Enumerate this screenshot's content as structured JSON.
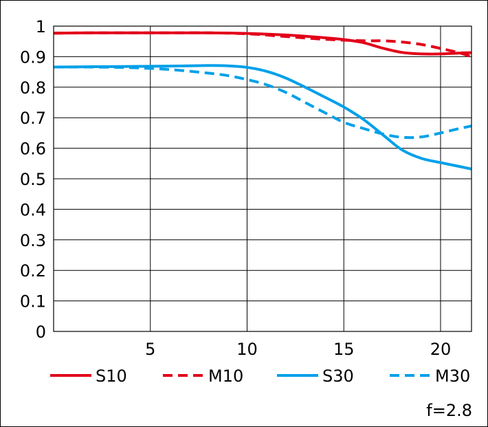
{
  "chart_data": {
    "type": "line",
    "title": "",
    "xlabel": "",
    "ylabel": "",
    "xlim": [
      0,
      21.6
    ],
    "ylim": [
      0,
      1
    ],
    "xticks": [
      5,
      10,
      15,
      20
    ],
    "xtick_labels": [
      "5",
      "10",
      "15",
      "20"
    ],
    "yticks": [
      0,
      0.1,
      0.2,
      0.3,
      0.4,
      0.5,
      0.6,
      0.7,
      0.8,
      0.9,
      1
    ],
    "ytick_labels": [
      "0",
      "0.1",
      "0.2",
      "0.3",
      "0.4",
      "0.5",
      "0.6",
      "0.7",
      "0.8",
      "0.9",
      "1"
    ],
    "grid": true,
    "legend_position": "bottom",
    "annotation": "f=2.8",
    "series": [
      {
        "name": "S10",
        "color": "#e2001a",
        "dash": "solid",
        "x": [
          0,
          2,
          4,
          6,
          8,
          10,
          12,
          14,
          15,
          16,
          17,
          18,
          19,
          20,
          21,
          21.6
        ],
        "y": [
          0.977,
          0.978,
          0.978,
          0.978,
          0.978,
          0.976,
          0.971,
          0.962,
          0.956,
          0.946,
          0.928,
          0.914,
          0.909,
          0.909,
          0.912,
          0.913
        ]
      },
      {
        "name": "M10",
        "color": "#e2001a",
        "dash": "dashed",
        "x": [
          0,
          2,
          4,
          6,
          8,
          10,
          12,
          14,
          16,
          17,
          18,
          19,
          20,
          21,
          21.6
        ],
        "y": [
          0.977,
          0.978,
          0.978,
          0.978,
          0.978,
          0.975,
          0.966,
          0.957,
          0.952,
          0.952,
          0.948,
          0.94,
          0.927,
          0.912,
          0.9
        ]
      },
      {
        "name": "S30",
        "color": "#00a0e9",
        "dash": "solid",
        "x": [
          0,
          2,
          4,
          6,
          8,
          9,
          10,
          11,
          12,
          13,
          14,
          15,
          16,
          17,
          18,
          19,
          20,
          21,
          21.6
        ],
        "y": [
          0.866,
          0.867,
          0.868,
          0.869,
          0.871,
          0.87,
          0.865,
          0.852,
          0.83,
          0.8,
          0.768,
          0.735,
          0.695,
          0.645,
          0.595,
          0.567,
          0.553,
          0.54,
          0.532
        ]
      },
      {
        "name": "M30",
        "color": "#00a0e9",
        "dash": "dashed",
        "x": [
          0,
          2,
          4,
          6,
          8,
          9,
          10,
          11,
          12,
          13,
          14,
          15,
          16,
          17,
          18,
          19,
          20,
          21,
          21.6
        ],
        "y": [
          0.866,
          0.866,
          0.864,
          0.858,
          0.846,
          0.838,
          0.825,
          0.808,
          0.783,
          0.75,
          0.717,
          0.685,
          0.665,
          0.647,
          0.636,
          0.637,
          0.65,
          0.665,
          0.673
        ]
      }
    ]
  }
}
